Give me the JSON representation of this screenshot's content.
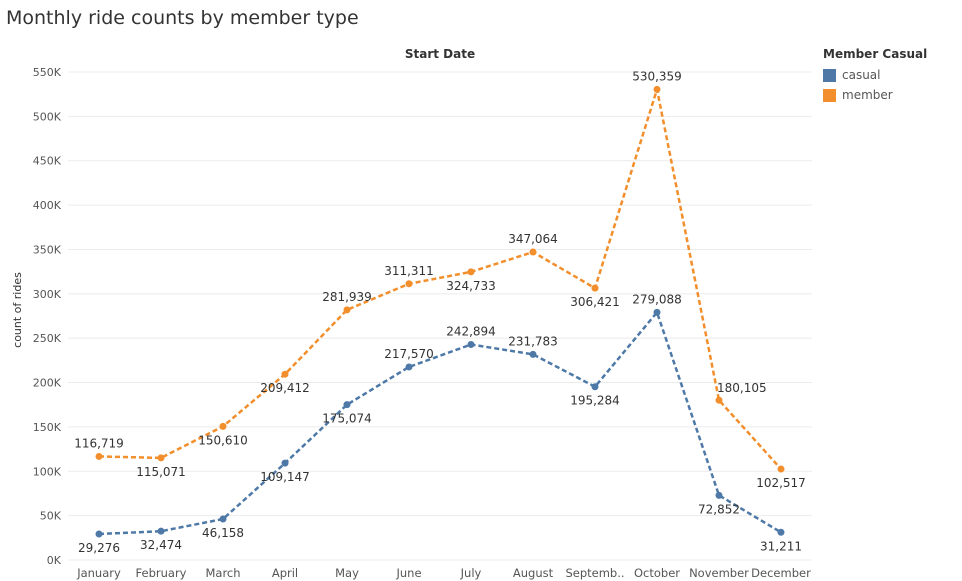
{
  "title": "Monthly ride counts by member type",
  "colors": {
    "casual": "#4e79a7",
    "member": "#f28e2b",
    "grid": "#ebebeb",
    "text": "#555555"
  },
  "legend": {
    "title": "Member Casual",
    "items": [
      {
        "label": "casual",
        "color": "#4e79a7"
      },
      {
        "label": "member",
        "color": "#f28e2b"
      }
    ]
  },
  "chart_data": {
    "type": "line",
    "title": "Monthly ride counts by member type",
    "xlabel": "Start Date",
    "ylabel": "count of rides",
    "categories": [
      "January",
      "February",
      "March",
      "April",
      "May",
      "June",
      "July",
      "August",
      "Septemb..",
      "October",
      "November",
      "December"
    ],
    "ylim": [
      0,
      550000
    ],
    "yticks": [
      "0K",
      "50K",
      "100K",
      "150K",
      "200K",
      "250K",
      "300K",
      "350K",
      "400K",
      "450K",
      "500K",
      "550K"
    ],
    "ytick_values": [
      0,
      50000,
      100000,
      150000,
      200000,
      250000,
      300000,
      350000,
      400000,
      450000,
      500000,
      550000
    ],
    "grid": true,
    "line_style": "dashed",
    "legend_position": "top-right",
    "series": [
      {
        "name": "casual",
        "color": "#4e79a7",
        "values": [
          29276,
          32474,
          46158,
          109147,
          175074,
          217570,
          242894,
          231783,
          195284,
          279088,
          72852,
          31211
        ],
        "labels": [
          "29,276",
          "32,474",
          "46,158",
          "109,147",
          "175,074",
          "217,570",
          "242,894",
          "231,783",
          "195,284",
          "279,088",
          "72,852",
          "31,211"
        ],
        "label_pos": [
          "below",
          "below",
          "below",
          "below",
          "below",
          "above",
          "above",
          "above",
          "below",
          "above",
          "below",
          "below"
        ]
      },
      {
        "name": "member",
        "color": "#f28e2b",
        "values": [
          116719,
          115071,
          150610,
          209412,
          281939,
          311311,
          324733,
          347064,
          306421,
          530359,
          180105,
          102517
        ],
        "labels": [
          "116,719",
          "115,071",
          "150,610",
          "209,412",
          "281,939",
          "311,311",
          "324,733",
          "347,064",
          "306,421",
          "530,359",
          "180,105",
          "102,517"
        ],
        "label_pos": [
          "above",
          "below",
          "below",
          "below",
          "above",
          "above",
          "below",
          "above",
          "below",
          "above",
          "right",
          "below"
        ]
      }
    ]
  }
}
